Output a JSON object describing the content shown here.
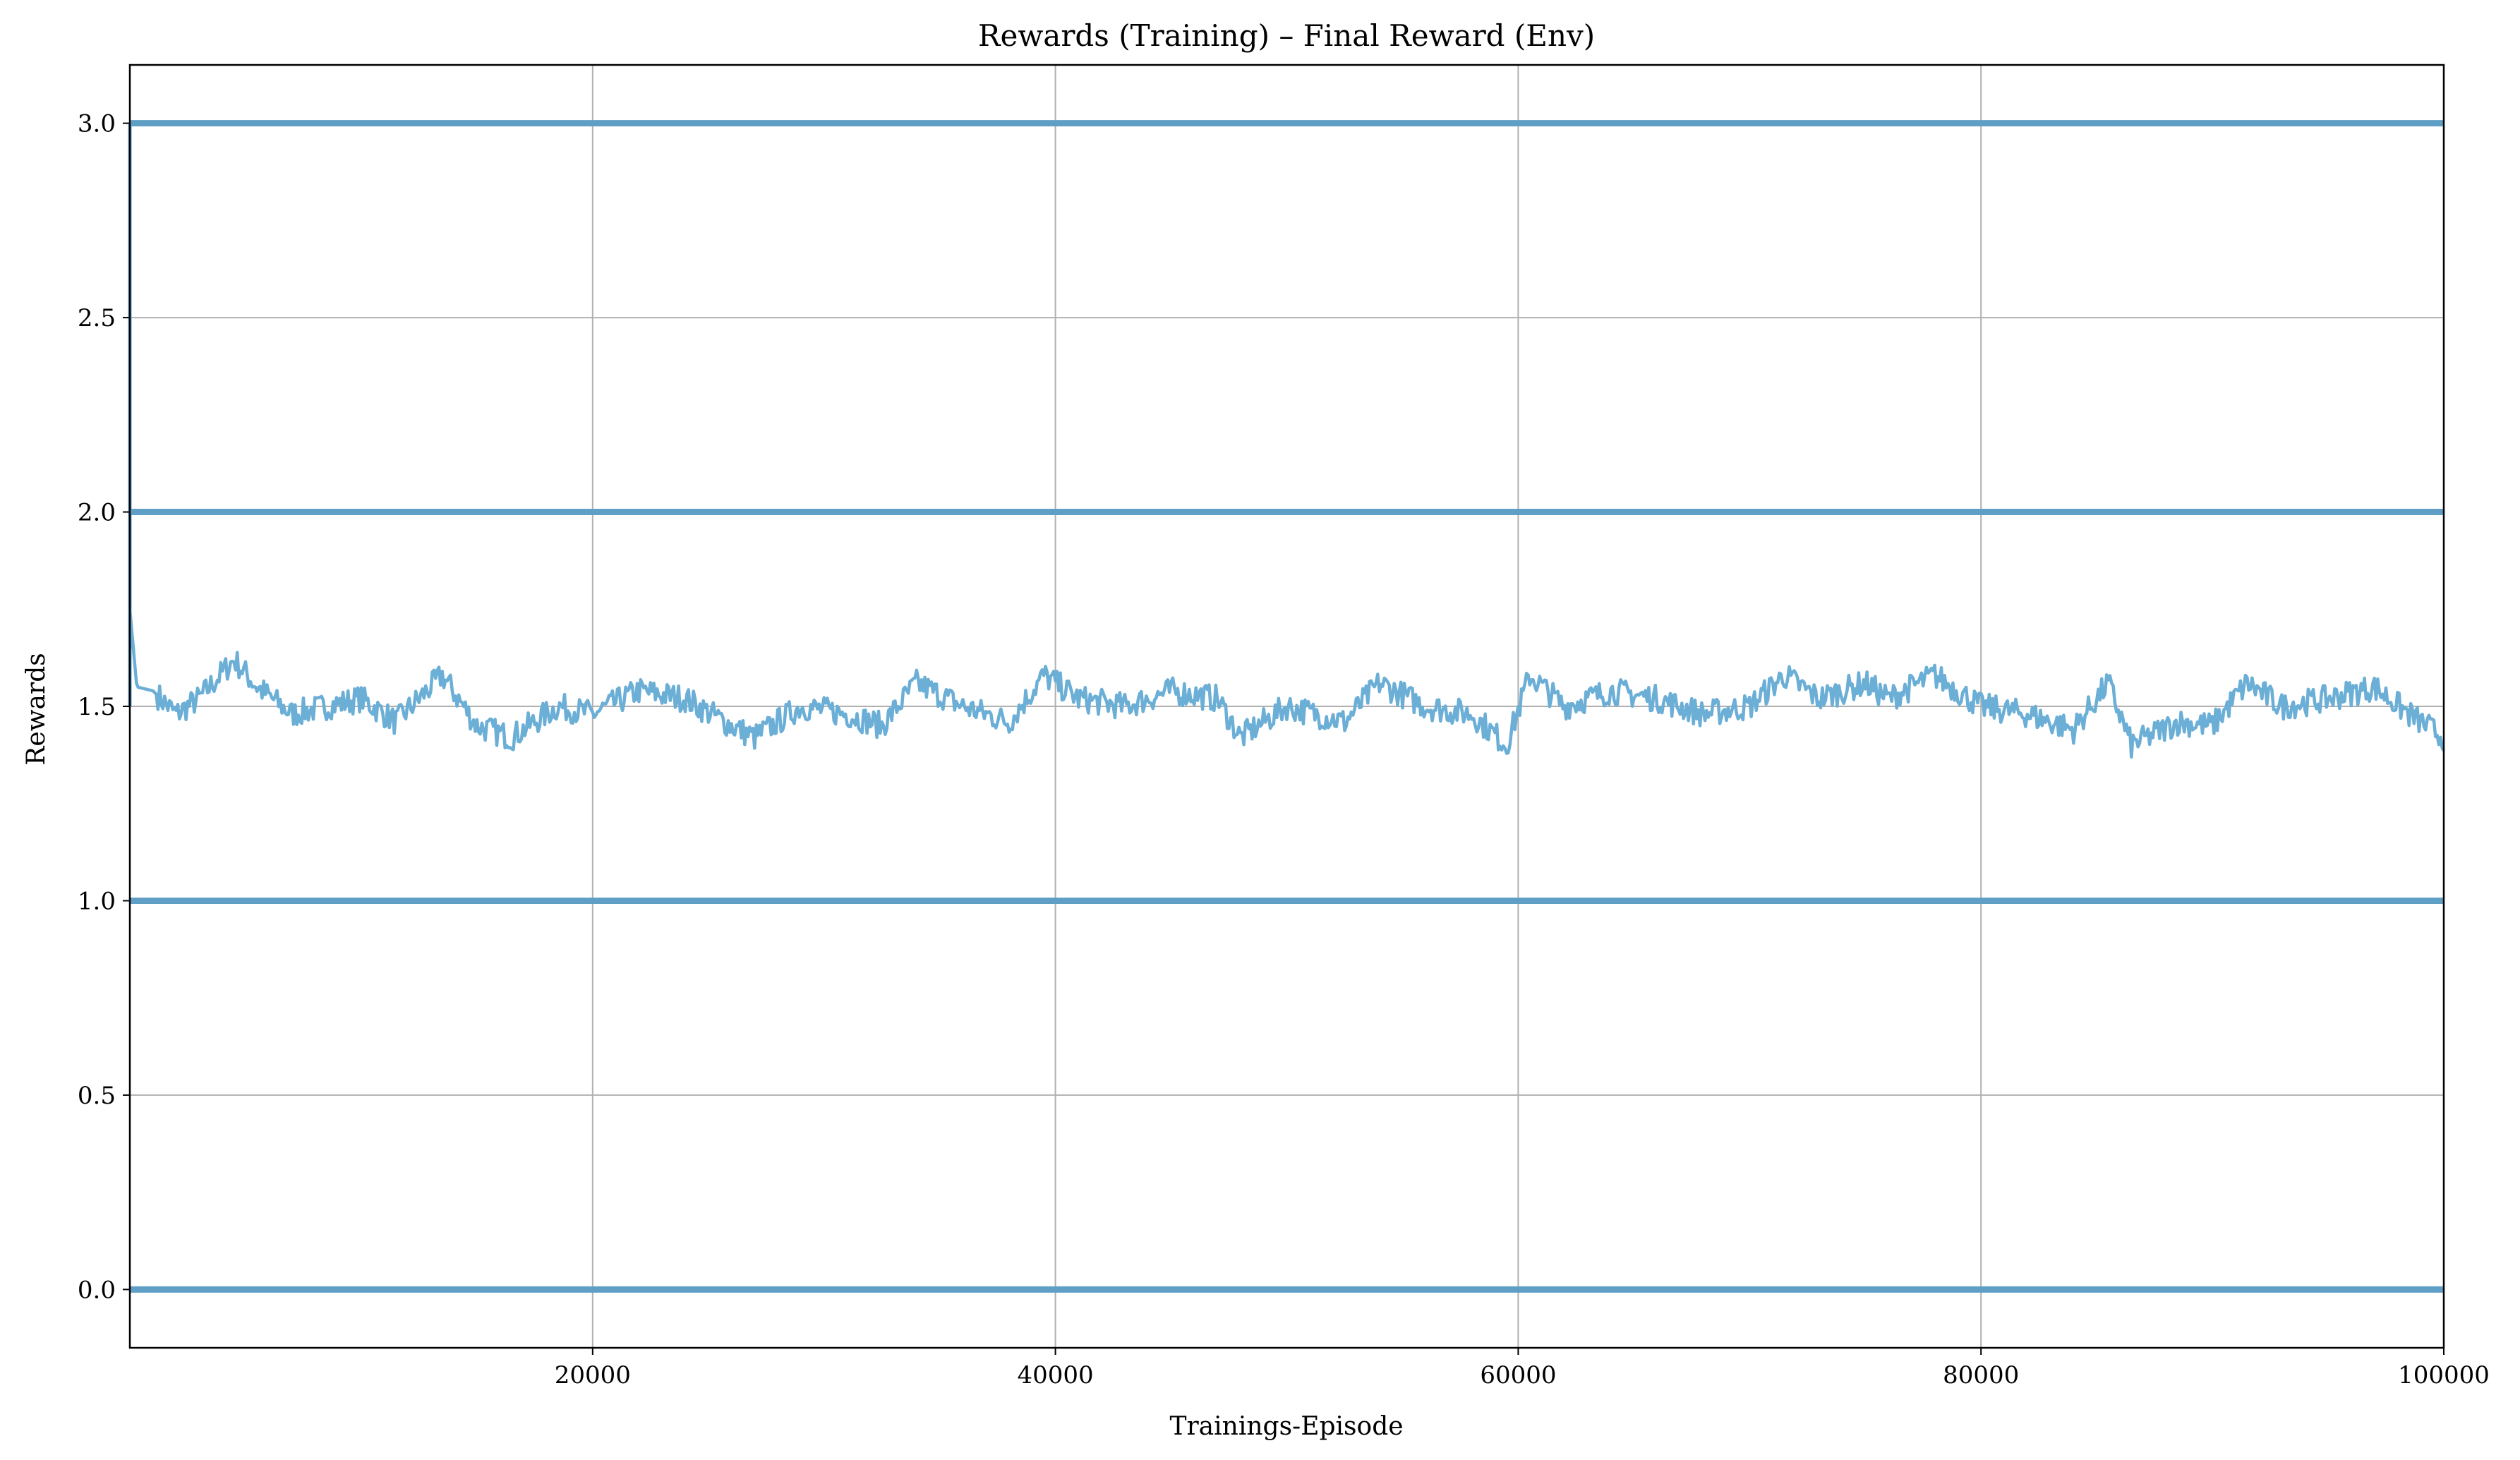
{
  "chart_data": {
    "type": "line",
    "title": "Rewards (Training) – Final Reward (Env)",
    "xlabel": "Trainings-Episode",
    "ylabel": "Rewards",
    "xlim": [
      0,
      100000
    ],
    "ylim": [
      -0.15,
      3.15
    ],
    "x_ticks": [
      20000,
      40000,
      60000,
      80000,
      100000
    ],
    "x_tick_labels": [
      "20000",
      "40000",
      "60000",
      "80000",
      "100000"
    ],
    "y_ticks": [
      0.0,
      0.5,
      1.0,
      1.5,
      2.0,
      2.5,
      3.0
    ],
    "y_tick_labels": [
      "0.0",
      "0.5",
      "1.0",
      "1.5",
      "2.0",
      "2.5",
      "3.0"
    ],
    "grid": true,
    "colors": {
      "raw": "#5f9fc6",
      "smoothed": "#6baed6",
      "grid": "#b0b0b0",
      "axes": "#000000"
    },
    "series": [
      {
        "role": "raw per-episode final reward",
        "discrete_levels": [
          0,
          1,
          2,
          3
        ],
        "x_range": [
          0,
          100000
        ]
      },
      {
        "role": "moving average",
        "x": [
          0,
          300,
          1000,
          2000,
          3000,
          4500,
          5500,
          7000,
          8500,
          10000,
          11500,
          13500,
          15000,
          16500,
          18500,
          20000,
          22000,
          24000,
          26000,
          27000,
          29000,
          31000,
          32500,
          34000,
          36000,
          38000,
          39500,
          41000,
          43000,
          45000,
          47000,
          48000,
          50000,
          52500,
          54000,
          56000,
          58000,
          59500,
          60500,
          62000,
          64000,
          66000,
          68000,
          70000,
          71500,
          73000,
          75000,
          76000,
          78000,
          80000,
          82000,
          84000,
          85500,
          86500,
          88500,
          90000,
          91500,
          93000,
          95000,
          97000,
          98500,
          100000
        ],
        "y": [
          1.75,
          1.55,
          1.54,
          1.48,
          1.52,
          1.62,
          1.55,
          1.48,
          1.5,
          1.52,
          1.46,
          1.58,
          1.45,
          1.42,
          1.5,
          1.48,
          1.54,
          1.52,
          1.45,
          1.42,
          1.5,
          1.48,
          1.45,
          1.56,
          1.5,
          1.46,
          1.58,
          1.52,
          1.5,
          1.54,
          1.52,
          1.42,
          1.5,
          1.46,
          1.56,
          1.5,
          1.48,
          1.4,
          1.58,
          1.5,
          1.54,
          1.52,
          1.48,
          1.5,
          1.58,
          1.52,
          1.56,
          1.52,
          1.58,
          1.5,
          1.48,
          1.44,
          1.56,
          1.4,
          1.46,
          1.45,
          1.56,
          1.5,
          1.52,
          1.55,
          1.48,
          1.42
        ]
      }
    ]
  }
}
